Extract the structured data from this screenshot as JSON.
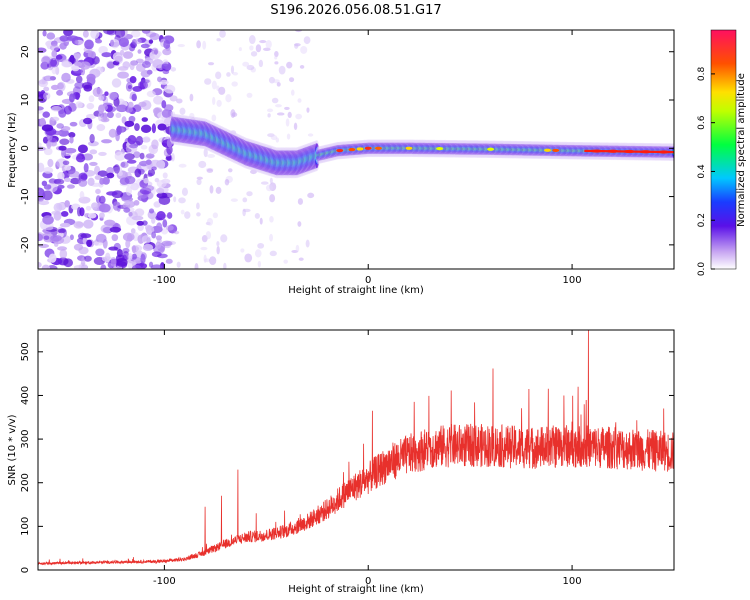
{
  "title": "S196.2026.056.08.51.G17",
  "colors": {
    "snr_line": "#e8302c",
    "frame": "#000000",
    "background": "#ffffff"
  },
  "chart_data": [
    {
      "type": "heatmap",
      "xlabel": "Height of straight line (km)",
      "ylabel": "Frequency (Hz)",
      "xlim": [
        -162,
        150
      ],
      "ylim": [
        -25,
        24.5
      ],
      "xticks": [
        -100,
        0,
        100
      ],
      "yticks": [
        -20,
        -10,
        0,
        10,
        20
      ],
      "colorbar": {
        "label": "Normalized spectral amplitude",
        "range": [
          0,
          0.98
        ],
        "ticks": [
          0.0,
          0.2,
          0.4,
          0.6,
          0.8
        ]
      },
      "ridge": {
        "description_points_km_hz": [
          [
            -96,
            4
          ],
          [
            -80,
            3
          ],
          [
            -70,
            1
          ],
          [
            -60,
            -1
          ],
          [
            -45,
            -3
          ],
          [
            -35,
            -3
          ],
          [
            -25,
            -1.5
          ],
          [
            -15,
            -0.5
          ],
          [
            0,
            0
          ],
          [
            20,
            0
          ],
          [
            60,
            -0.2
          ],
          [
            100,
            -0.5
          ],
          [
            150,
            -0.8
          ]
        ]
      }
    },
    {
      "type": "line",
      "xlabel": "Height of straight line (km)",
      "ylabel": "SNR (10 * v/v)",
      "xlim": [
        -162,
        150
      ],
      "ylim": [
        0,
        550
      ],
      "xticks": [
        -100,
        0,
        100
      ],
      "yticks": [
        0,
        100,
        200,
        300,
        400,
        500
      ],
      "envelope_x": [
        -162,
        -100,
        -90,
        -80,
        -70,
        -60,
        -50,
        -40,
        -30,
        -20,
        -10,
        0,
        10,
        20,
        30,
        40,
        60,
        80,
        100,
        120,
        150
      ],
      "envelope_y": [
        15,
        20,
        25,
        40,
        60,
        75,
        80,
        90,
        110,
        140,
        180,
        210,
        245,
        265,
        280,
        285,
        285,
        280,
        285,
        280,
        270
      ],
      "spikes": [
        [
          -80,
          145
        ],
        [
          -72,
          170
        ],
        [
          -64,
          230
        ],
        [
          -55,
          130
        ],
        [
          2,
          365
        ],
        [
          70,
          300
        ],
        [
          96,
          400
        ],
        [
          100,
          340
        ],
        [
          103,
          420
        ],
        [
          106,
          380
        ],
        [
          108,
          550
        ],
        [
          145,
          370
        ]
      ]
    }
  ]
}
